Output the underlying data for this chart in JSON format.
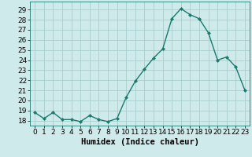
{
  "x": [
    0,
    1,
    2,
    3,
    4,
    5,
    6,
    7,
    8,
    9,
    10,
    11,
    12,
    13,
    14,
    15,
    16,
    17,
    18,
    19,
    20,
    21,
    22,
    23
  ],
  "y": [
    18.8,
    18.2,
    18.8,
    18.1,
    18.1,
    17.9,
    18.5,
    18.1,
    17.9,
    18.2,
    20.3,
    21.9,
    23.1,
    24.2,
    25.1,
    28.1,
    29.1,
    28.5,
    28.1,
    26.7,
    24.0,
    24.3,
    23.3,
    21.0
  ],
  "line_color": "#1a7a6e",
  "marker": "D",
  "marker_size": 2.0,
  "bg_color": "#ceeaea",
  "grid_color": "#a8cece",
  "xlabel": "Humidex (Indice chaleur)",
  "ylim": [
    17.5,
    29.8
  ],
  "yticks": [
    18,
    19,
    20,
    21,
    22,
    23,
    24,
    25,
    26,
    27,
    28,
    29
  ],
  "tick_fontsize": 6.5,
  "xlabel_fontsize": 7.5,
  "linewidth": 1.0
}
